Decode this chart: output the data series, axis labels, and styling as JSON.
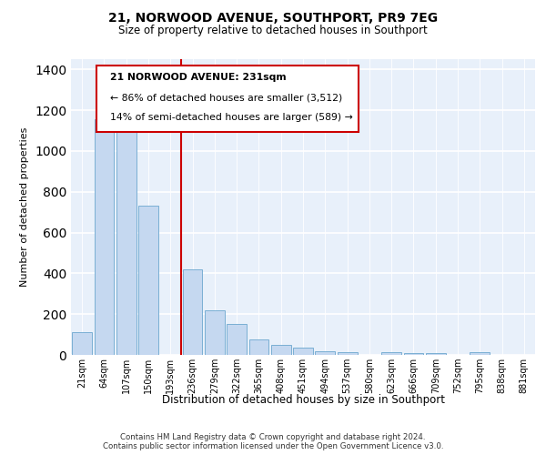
{
  "title1": "21, NORWOOD AVENUE, SOUTHPORT, PR9 7EG",
  "title2": "Size of property relative to detached houses in Southport",
  "xlabel": "Distribution of detached houses by size in Southport",
  "ylabel": "Number of detached properties",
  "categories": [
    "21sqm",
    "64sqm",
    "107sqm",
    "150sqm",
    "193sqm",
    "236sqm",
    "279sqm",
    "322sqm",
    "365sqm",
    "408sqm",
    "451sqm",
    "494sqm",
    "537sqm",
    "580sqm",
    "623sqm",
    "666sqm",
    "709sqm",
    "752sqm",
    "795sqm",
    "838sqm",
    "881sqm"
  ],
  "values": [
    110,
    1155,
    1155,
    730,
    0,
    420,
    220,
    150,
    75,
    50,
    35,
    20,
    15,
    0,
    15,
    10,
    10,
    0,
    15,
    0,
    0
  ],
  "bar_color": "#c5d8f0",
  "bar_edge_color": "#7aafd4",
  "red_line_index": 5,
  "annotation_title": "21 NORWOOD AVENUE: 231sqm",
  "annotation_line1": "← 86% of detached houses are smaller (3,512)",
  "annotation_line2": "14% of semi-detached houses are larger (589) →",
  "ylim": [
    0,
    1450
  ],
  "yticks": [
    0,
    200,
    400,
    600,
    800,
    1000,
    1200,
    1400
  ],
  "footer1": "Contains HM Land Registry data © Crown copyright and database right 2024.",
  "footer2": "Contains public sector information licensed under the Open Government Licence v3.0.",
  "bg_color": "#e8f0fa",
  "grid_color": "#ffffff"
}
